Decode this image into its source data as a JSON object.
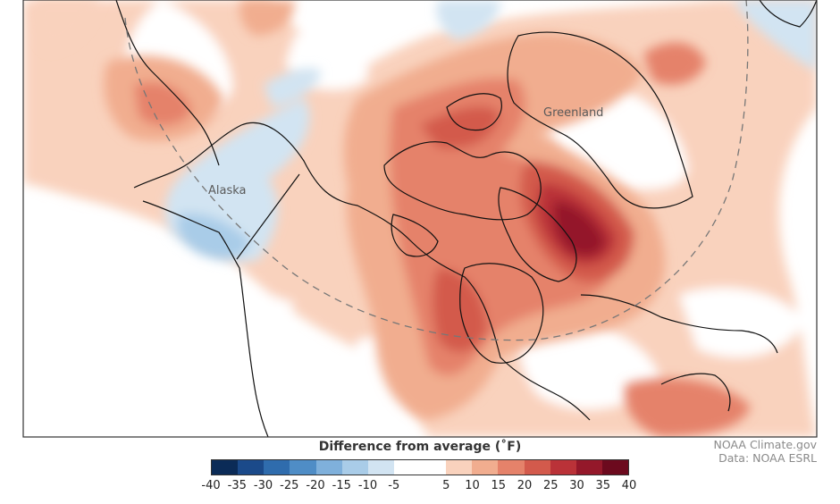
{
  "map": {
    "labels": {
      "alaska": "Alaska",
      "greenland": "Greenland"
    }
  },
  "legend": {
    "title": "Difference from average (˚F)",
    "ticks": [
      "-40",
      "-35",
      "-30",
      "-25",
      "-20",
      "-15",
      "-10",
      "-5",
      "5",
      "10",
      "15",
      "20",
      "25",
      "30",
      "35",
      "40"
    ],
    "colors": [
      "#0b2b57",
      "#1b4a8a",
      "#2f6cad",
      "#4f8dc6",
      "#7fb0db",
      "#a9cce8",
      "#d2e4f2",
      "#ffffff",
      "#ffffff",
      "#f9d2bd",
      "#f1ad8f",
      "#e5826a",
      "#d35a4c",
      "#ba3238",
      "#94182a",
      "#6c0a1e"
    ]
  },
  "credit": {
    "line1": "NOAA Climate.gov",
    "line2": "Data: NOAA ESRL"
  }
}
